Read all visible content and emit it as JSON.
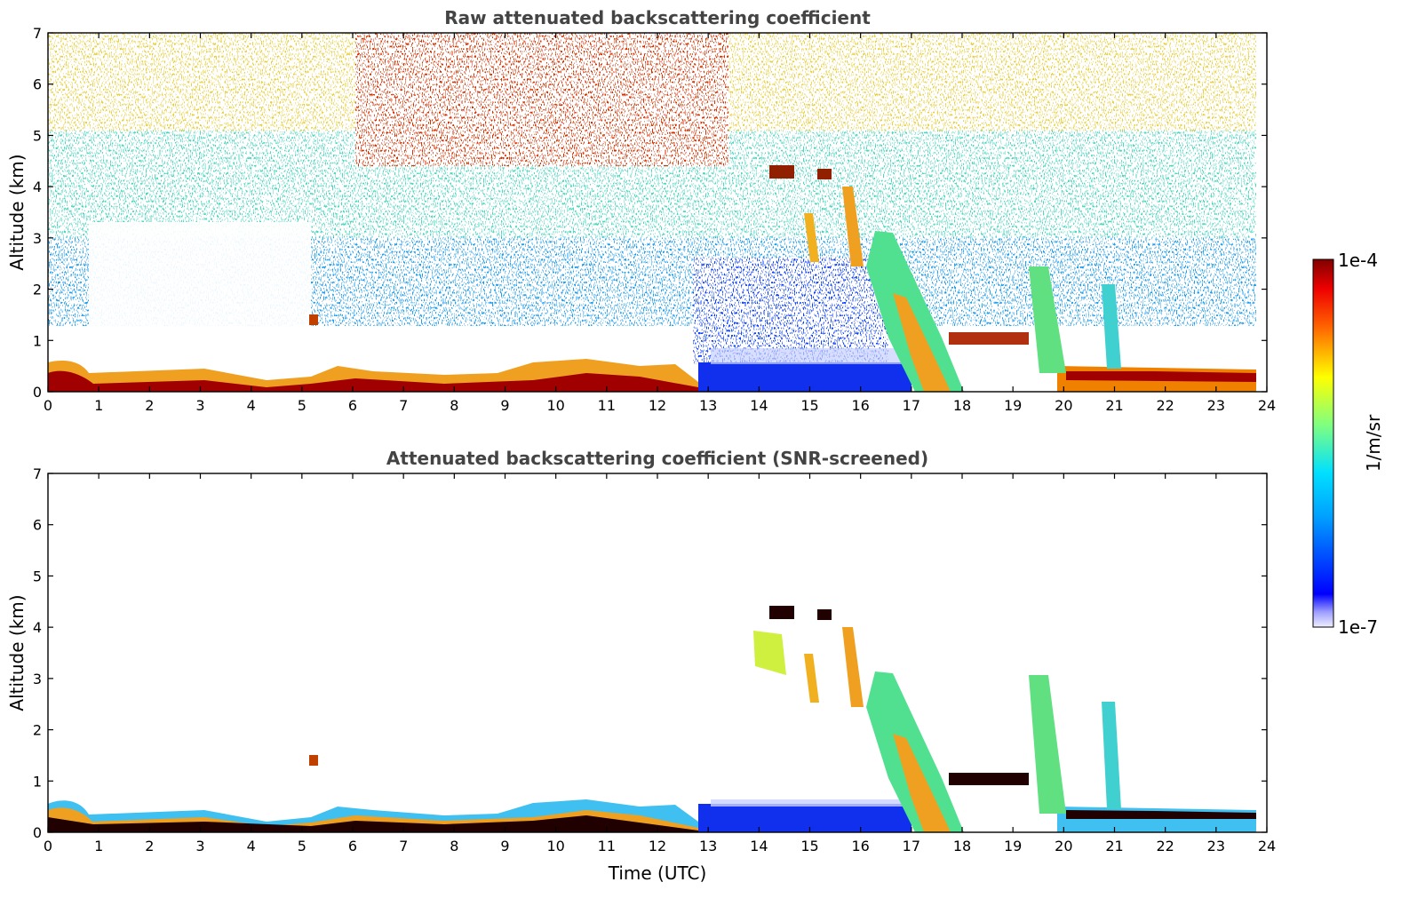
{
  "chart_data": [
    {
      "type": "heatmap",
      "title": "Raw attenuated backscattering coefficient",
      "ylabel": "Altitude (km)",
      "xlabel": "",
      "xlim": [
        0,
        24
      ],
      "ylim": [
        0,
        7
      ],
      "xticks": [
        "0",
        "1",
        "2",
        "3",
        "4",
        "5",
        "6",
        "7",
        "8",
        "9",
        "10",
        "11",
        "12",
        "13",
        "14",
        "15",
        "16",
        "17",
        "18",
        "19",
        "20",
        "21",
        "22",
        "23",
        "24"
      ],
      "yticks": [
        "0",
        "1",
        "2",
        "3",
        "4",
        "5",
        "6",
        "7"
      ],
      "colormap": "jet",
      "color_scale": "log",
      "clim": [
        1e-07,
        0.0001
      ],
      "features": [
        {
          "kind": "boundary_layer",
          "x": [
            0,
            23.8
          ],
          "y": [
            0,
            0.5
          ],
          "level": "high"
        },
        {
          "kind": "noise_field",
          "x": [
            0,
            23.8
          ],
          "y": [
            1.5,
            7
          ],
          "level": "mixed"
        },
        {
          "kind": "clear_gap",
          "x": [
            0.8,
            5.2
          ],
          "y": [
            0.7,
            3.5
          ]
        },
        {
          "kind": "low_signal_region",
          "x": [
            12.8,
            17
          ],
          "y": [
            0,
            0.5
          ]
        },
        {
          "kind": "falling_cloud_streak",
          "x": [
            15.6,
            17.8
          ],
          "y": [
            0,
            3.3
          ]
        },
        {
          "kind": "cloud_layer",
          "x": [
            17.7,
            19.2
          ],
          "y": [
            0.9,
            1.1
          ]
        },
        {
          "kind": "cloud_fragments",
          "x": [
            14.3,
            15.5
          ],
          "y": [
            4.1,
            4.4
          ]
        }
      ]
    },
    {
      "type": "heatmap",
      "title": "Attenuated backscattering coefficient (SNR-screened)",
      "ylabel": "Altitude (km)",
      "xlabel": "Time (UTC)",
      "xlim": [
        0,
        24
      ],
      "ylim": [
        0,
        7
      ],
      "xticks": [
        "0",
        "1",
        "2",
        "3",
        "4",
        "5",
        "6",
        "7",
        "8",
        "9",
        "10",
        "11",
        "12",
        "13",
        "14",
        "15",
        "16",
        "17",
        "18",
        "19",
        "20",
        "21",
        "22",
        "23",
        "24"
      ],
      "yticks": [
        "0",
        "1",
        "2",
        "3",
        "4",
        "5",
        "6",
        "7"
      ],
      "colormap": "jet",
      "color_scale": "log",
      "clim": [
        1e-07,
        0.0001
      ],
      "features": [
        {
          "kind": "boundary_layer",
          "x": [
            0,
            23.8
          ],
          "y": [
            0,
            0.5
          ],
          "level": "high"
        },
        {
          "kind": "low_signal_region",
          "x": [
            12.8,
            17
          ],
          "y": [
            0,
            0.5
          ]
        },
        {
          "kind": "falling_cloud_streak",
          "x": [
            15.6,
            17.8
          ],
          "y": [
            0,
            3.3
          ]
        },
        {
          "kind": "cloud_layer",
          "x": [
            17.7,
            19.2
          ],
          "y": [
            0.9,
            1.1
          ]
        },
        {
          "kind": "cloud_fragments",
          "x": [
            14.3,
            15.5
          ],
          "y": [
            4.1,
            4.4
          ]
        }
      ]
    }
  ],
  "colorbar": {
    "label": "1/m/sr",
    "max_label": "1e-4",
    "min_label": "1e-7"
  },
  "colors": {
    "jet_dark_red": "#800000",
    "jet_red": "#ff2000",
    "jet_yellow": "#ffe000",
    "jet_green": "#80ff80",
    "jet_cyan": "#00d0ff",
    "jet_blue": "#0020ff",
    "jet_navy": "#00008f",
    "title_gray": "#444444"
  }
}
